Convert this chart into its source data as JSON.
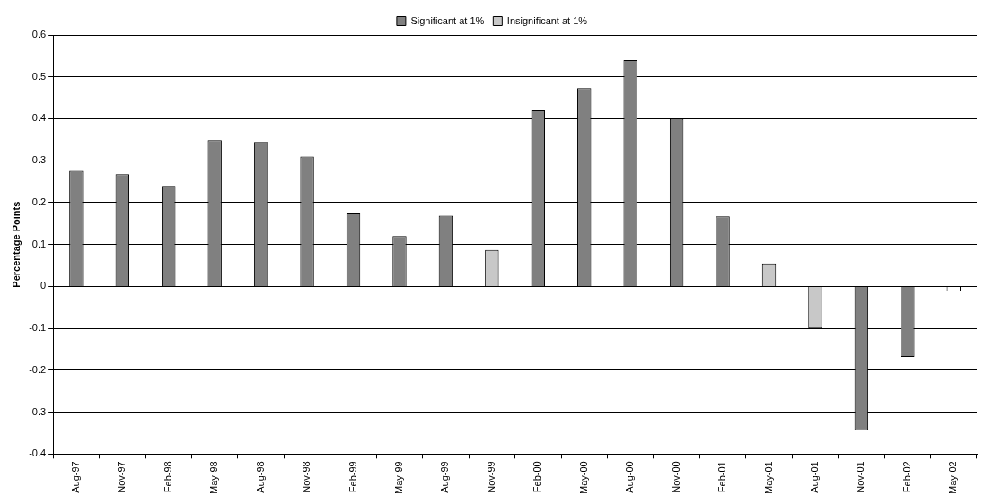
{
  "chart_data": {
    "type": "bar",
    "ylabel": "Percentage Points",
    "categories": [
      "Aug-97",
      "Nov-97",
      "Feb-98",
      "May-98",
      "Aug-98",
      "Nov-98",
      "Feb-99",
      "May-99",
      "Aug-99",
      "Nov-99",
      "Feb-00",
      "May-00",
      "Aug-00",
      "Nov-00",
      "Feb-01",
      "May-01",
      "Aug-01",
      "Nov-01",
      "Feb-02",
      "May-02"
    ],
    "series": [
      {
        "name": "Significant at 1%",
        "color": "#808080",
        "values": [
          0.276,
          0.268,
          0.24,
          0.349,
          0.345,
          0.31,
          0.174,
          0.12,
          0.169,
          null,
          0.42,
          0.473,
          0.54,
          0.4,
          0.167,
          null,
          null,
          -0.343,
          -0.168,
          null
        ]
      },
      {
        "name": "Insignificant at 1%",
        "color": "#c8c8c8",
        "colors": [
          "#ffffff",
          "#ffffff",
          "#ffffff",
          "#ffffff",
          "#ffffff",
          "#ffffff",
          "#ffffff",
          "#ffffff",
          "#ffffff",
          "#c8c8c8",
          "#ffffff",
          "#ffffff",
          "#ffffff",
          "#ffffff",
          "#ffffff",
          "#c8c8c8",
          "#c8c8c8",
          "#ffffff",
          "#ffffff",
          "#ffffff"
        ],
        "values": [
          null,
          null,
          null,
          null,
          null,
          null,
          null,
          null,
          null,
          0.087,
          null,
          null,
          null,
          null,
          null,
          0.055,
          -0.1,
          null,
          null,
          -0.012
        ]
      }
    ],
    "ylim": [
      -0.4,
      0.6
    ],
    "yticks": [
      -0.4,
      -0.3,
      -0.2,
      -0.1,
      0,
      0.1,
      0.2,
      0.3,
      0.4,
      0.5,
      0.6
    ],
    "grid": "y",
    "legend": "top"
  }
}
